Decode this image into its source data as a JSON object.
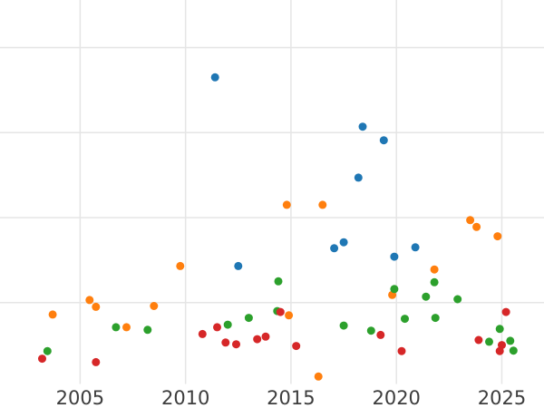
{
  "chart_data": {
    "type": "scatter",
    "title": "",
    "xlabel": "",
    "ylabel": "",
    "x_ticks": [
      2005,
      2010,
      2015,
      2020,
      2025
    ],
    "x_tick_labels": [
      "2005",
      "2010",
      "2015",
      "2020",
      "2025"
    ],
    "xlim": [
      2001.2,
      2027.0
    ],
    "ylim": [
      0,
      45.6
    ],
    "y_gridlines": [
      10,
      20,
      30,
      40
    ],
    "grid": true,
    "legend": "none",
    "tick_label_color": "#3d3d3d",
    "grid_color": "#e5e5e5",
    "background_color": "#ffffff",
    "series": [
      {
        "name": "blue",
        "color": "#1f77b4",
        "points": [
          [
            2011.4,
            36.5
          ],
          [
            2018.4,
            30.7
          ],
          [
            2019.4,
            29.1
          ],
          [
            2018.2,
            24.7
          ],
          [
            2017.5,
            17.1
          ],
          [
            2017.05,
            16.4
          ],
          [
            2020.9,
            16.5
          ],
          [
            2019.9,
            15.4
          ],
          [
            2012.5,
            14.3
          ]
        ]
      },
      {
        "name": "orange",
        "color": "#ff7f0e",
        "points": [
          [
            2014.8,
            21.5
          ],
          [
            2016.5,
            21.5
          ],
          [
            2023.5,
            19.7
          ],
          [
            2023.8,
            18.9
          ],
          [
            2024.8,
            17.8
          ],
          [
            2021.8,
            13.9
          ],
          [
            2019.8,
            10.9
          ],
          [
            2009.75,
            14.3
          ],
          [
            2005.45,
            10.3
          ],
          [
            2005.75,
            9.5
          ],
          [
            2008.5,
            9.6
          ],
          [
            2003.7,
            8.6
          ],
          [
            2007.2,
            7.1
          ],
          [
            2014.9,
            8.5
          ],
          [
            2016.3,
            1.3
          ]
        ]
      },
      {
        "name": "green",
        "color": "#2ca02c",
        "points": [
          [
            2014.4,
            12.5
          ],
          [
            2021.8,
            12.4
          ],
          [
            2019.9,
            11.6
          ],
          [
            2021.4,
            10.7
          ],
          [
            2022.9,
            10.4
          ],
          [
            2013.0,
            8.2
          ],
          [
            2014.35,
            9.0
          ],
          [
            2020.4,
            8.1
          ],
          [
            2021.85,
            8.2
          ],
          [
            2017.5,
            7.3
          ],
          [
            2012.0,
            7.4
          ],
          [
            2006.7,
            7.1
          ],
          [
            2008.2,
            6.8
          ],
          [
            2018.8,
            6.7
          ],
          [
            2024.9,
            6.9
          ],
          [
            2024.4,
            5.4
          ],
          [
            2025.4,
            5.5
          ],
          [
            2025.55,
            4.35
          ],
          [
            2003.45,
            4.3
          ]
        ]
      },
      {
        "name": "red",
        "color": "#d62728",
        "points": [
          [
            2025.2,
            8.9
          ],
          [
            2014.5,
            8.9
          ],
          [
            2011.5,
            7.1
          ],
          [
            2010.8,
            6.3
          ],
          [
            2011.9,
            5.3
          ],
          [
            2012.4,
            5.1
          ],
          [
            2013.4,
            5.7
          ],
          [
            2013.8,
            6.0
          ],
          [
            2015.25,
            4.9
          ],
          [
            2019.25,
            6.2
          ],
          [
            2020.25,
            4.3
          ],
          [
            2023.9,
            5.6
          ],
          [
            2025.0,
            5.0
          ],
          [
            2024.9,
            4.3
          ],
          [
            2003.2,
            3.4
          ],
          [
            2005.75,
            3.0
          ]
        ]
      }
    ]
  }
}
